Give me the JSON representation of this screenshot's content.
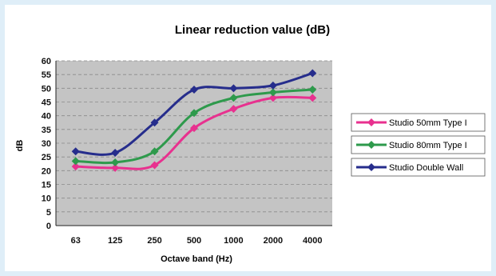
{
  "chart_data": {
    "type": "line",
    "title": "Linear reduction value (dB)",
    "xlabel": "Octave band (Hz)",
    "ylabel": "dB",
    "categories": [
      "63",
      "125",
      "250",
      "500",
      "1000",
      "2000",
      "4000"
    ],
    "ylim": [
      0,
      60
    ],
    "yticks": [
      0,
      5,
      10,
      15,
      20,
      25,
      30,
      35,
      40,
      45,
      50,
      55,
      60
    ],
    "grid": "horizontal dashed",
    "legend": "right",
    "series": [
      {
        "name": "Studio 50mm Type I",
        "color": "#e8318f",
        "values": [
          21.5,
          21,
          22,
          35.5,
          42.5,
          46.5,
          46.5
        ]
      },
      {
        "name": "Studio 80mm Type I",
        "color": "#2e9a4c",
        "values": [
          23.5,
          23,
          27,
          41,
          46.5,
          48.5,
          49.5
        ]
      },
      {
        "name": "Studio Double Wall",
        "color": "#262d8c",
        "values": [
          27,
          26.5,
          37.5,
          49.5,
          50,
          51,
          55.5
        ]
      }
    ]
  }
}
